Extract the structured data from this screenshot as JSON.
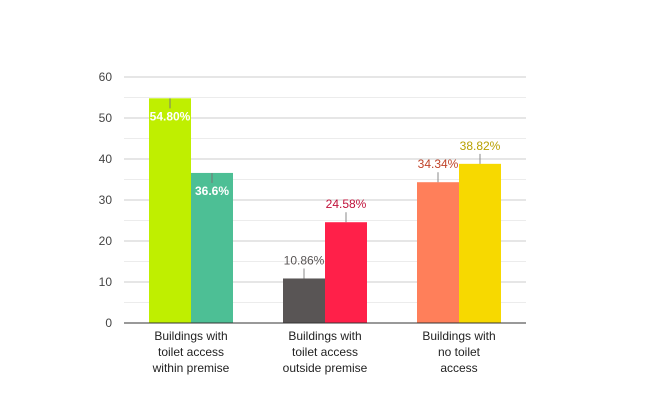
{
  "chart_data": {
    "type": "bar",
    "title": "",
    "xlabel": "",
    "ylabel": "",
    "ylim": [
      0,
      60
    ],
    "yticks": [
      0,
      10,
      20,
      30,
      40,
      50,
      60
    ],
    "grid": true,
    "categories": [
      [
        "Buildings with",
        "toilet access",
        "within premise"
      ],
      [
        "Buildings with",
        "toilet access",
        "outside premise"
      ],
      [
        "Buildings with",
        "no toilet",
        "access"
      ]
    ],
    "groups": [
      {
        "bars": [
          {
            "value": 54.8,
            "label": "54.80%",
            "color": "#bfef00",
            "label_color": "#ffffff",
            "label_inside": true
          },
          {
            "value": 36.6,
            "label": "36.6%",
            "color": "#4dbf95",
            "label_color": "#ffffff",
            "label_inside": true
          }
        ]
      },
      {
        "bars": [
          {
            "value": 10.86,
            "label": "10.86%",
            "color": "#595555",
            "label_color": "#595555",
            "label_inside": false
          },
          {
            "value": 24.58,
            "label": "24.58%",
            "color": "#ff2049",
            "label_color": "#c0113a",
            "label_inside": false
          }
        ]
      },
      {
        "bars": [
          {
            "value": 34.34,
            "label": "34.34%",
            "color": "#ff7f5a",
            "label_color": "#c0442a",
            "label_inside": false
          },
          {
            "value": 38.82,
            "label": "38.82%",
            "color": "#f7d900",
            "label_color": "#b8a000",
            "label_inside": false
          }
        ]
      }
    ]
  }
}
